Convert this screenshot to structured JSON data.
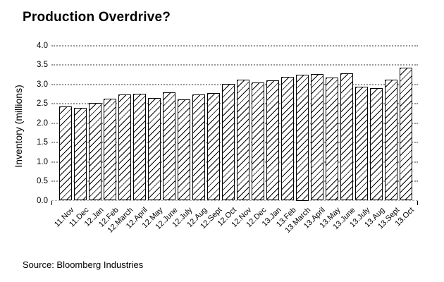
{
  "page": {
    "title": "Production Overdrive?",
    "source": "Source: Bloomberg Industries"
  },
  "chart_data": {
    "type": "bar",
    "title": "Production Overdrive?",
    "xlabel": "",
    "ylabel": "Inventory (millions)",
    "source": "Source: Bloomberg Industries",
    "ylim": [
      0.0,
      4.0
    ],
    "ytick_labels": [
      "0.0",
      "0.5",
      "1.0",
      "1.5",
      "2.0",
      "2.5",
      "3.0",
      "3.5",
      "4.0"
    ],
    "grid": "horizontal dotted",
    "legend": "none",
    "bar_style": "white fill, black outline, black diagonal hatch",
    "categories": [
      "11.Nov",
      "11.Dec",
      "12.Jan",
      "12.Feb",
      "12.March",
      "12.April",
      "12.May",
      "12.June",
      "12.July",
      "12.Aug",
      "12.Sept",
      "12.Oct",
      "12.Nov",
      "12.Dec",
      "13.Jan",
      "13.Feb",
      "13.March",
      "13.April",
      "13.May",
      "13.June",
      "13.July",
      "13.Aug",
      "13.Sept",
      "13.Oct"
    ],
    "values": [
      2.44,
      2.4,
      2.52,
      2.63,
      2.74,
      2.76,
      2.66,
      2.79,
      2.61,
      2.74,
      2.77,
      3.01,
      3.13,
      3.06,
      3.11,
      3.2,
      3.25,
      3.27,
      3.18,
      3.29,
      2.94,
      2.91,
      3.13,
      3.43
    ],
    "colors": {
      "background": "#ffffff",
      "text": "#000000",
      "bar_outline": "#000000",
      "bar_fill": "#ffffff",
      "hatch": "#000000",
      "gridline": "#999999",
      "baseline": "#b3b3b3"
    }
  }
}
